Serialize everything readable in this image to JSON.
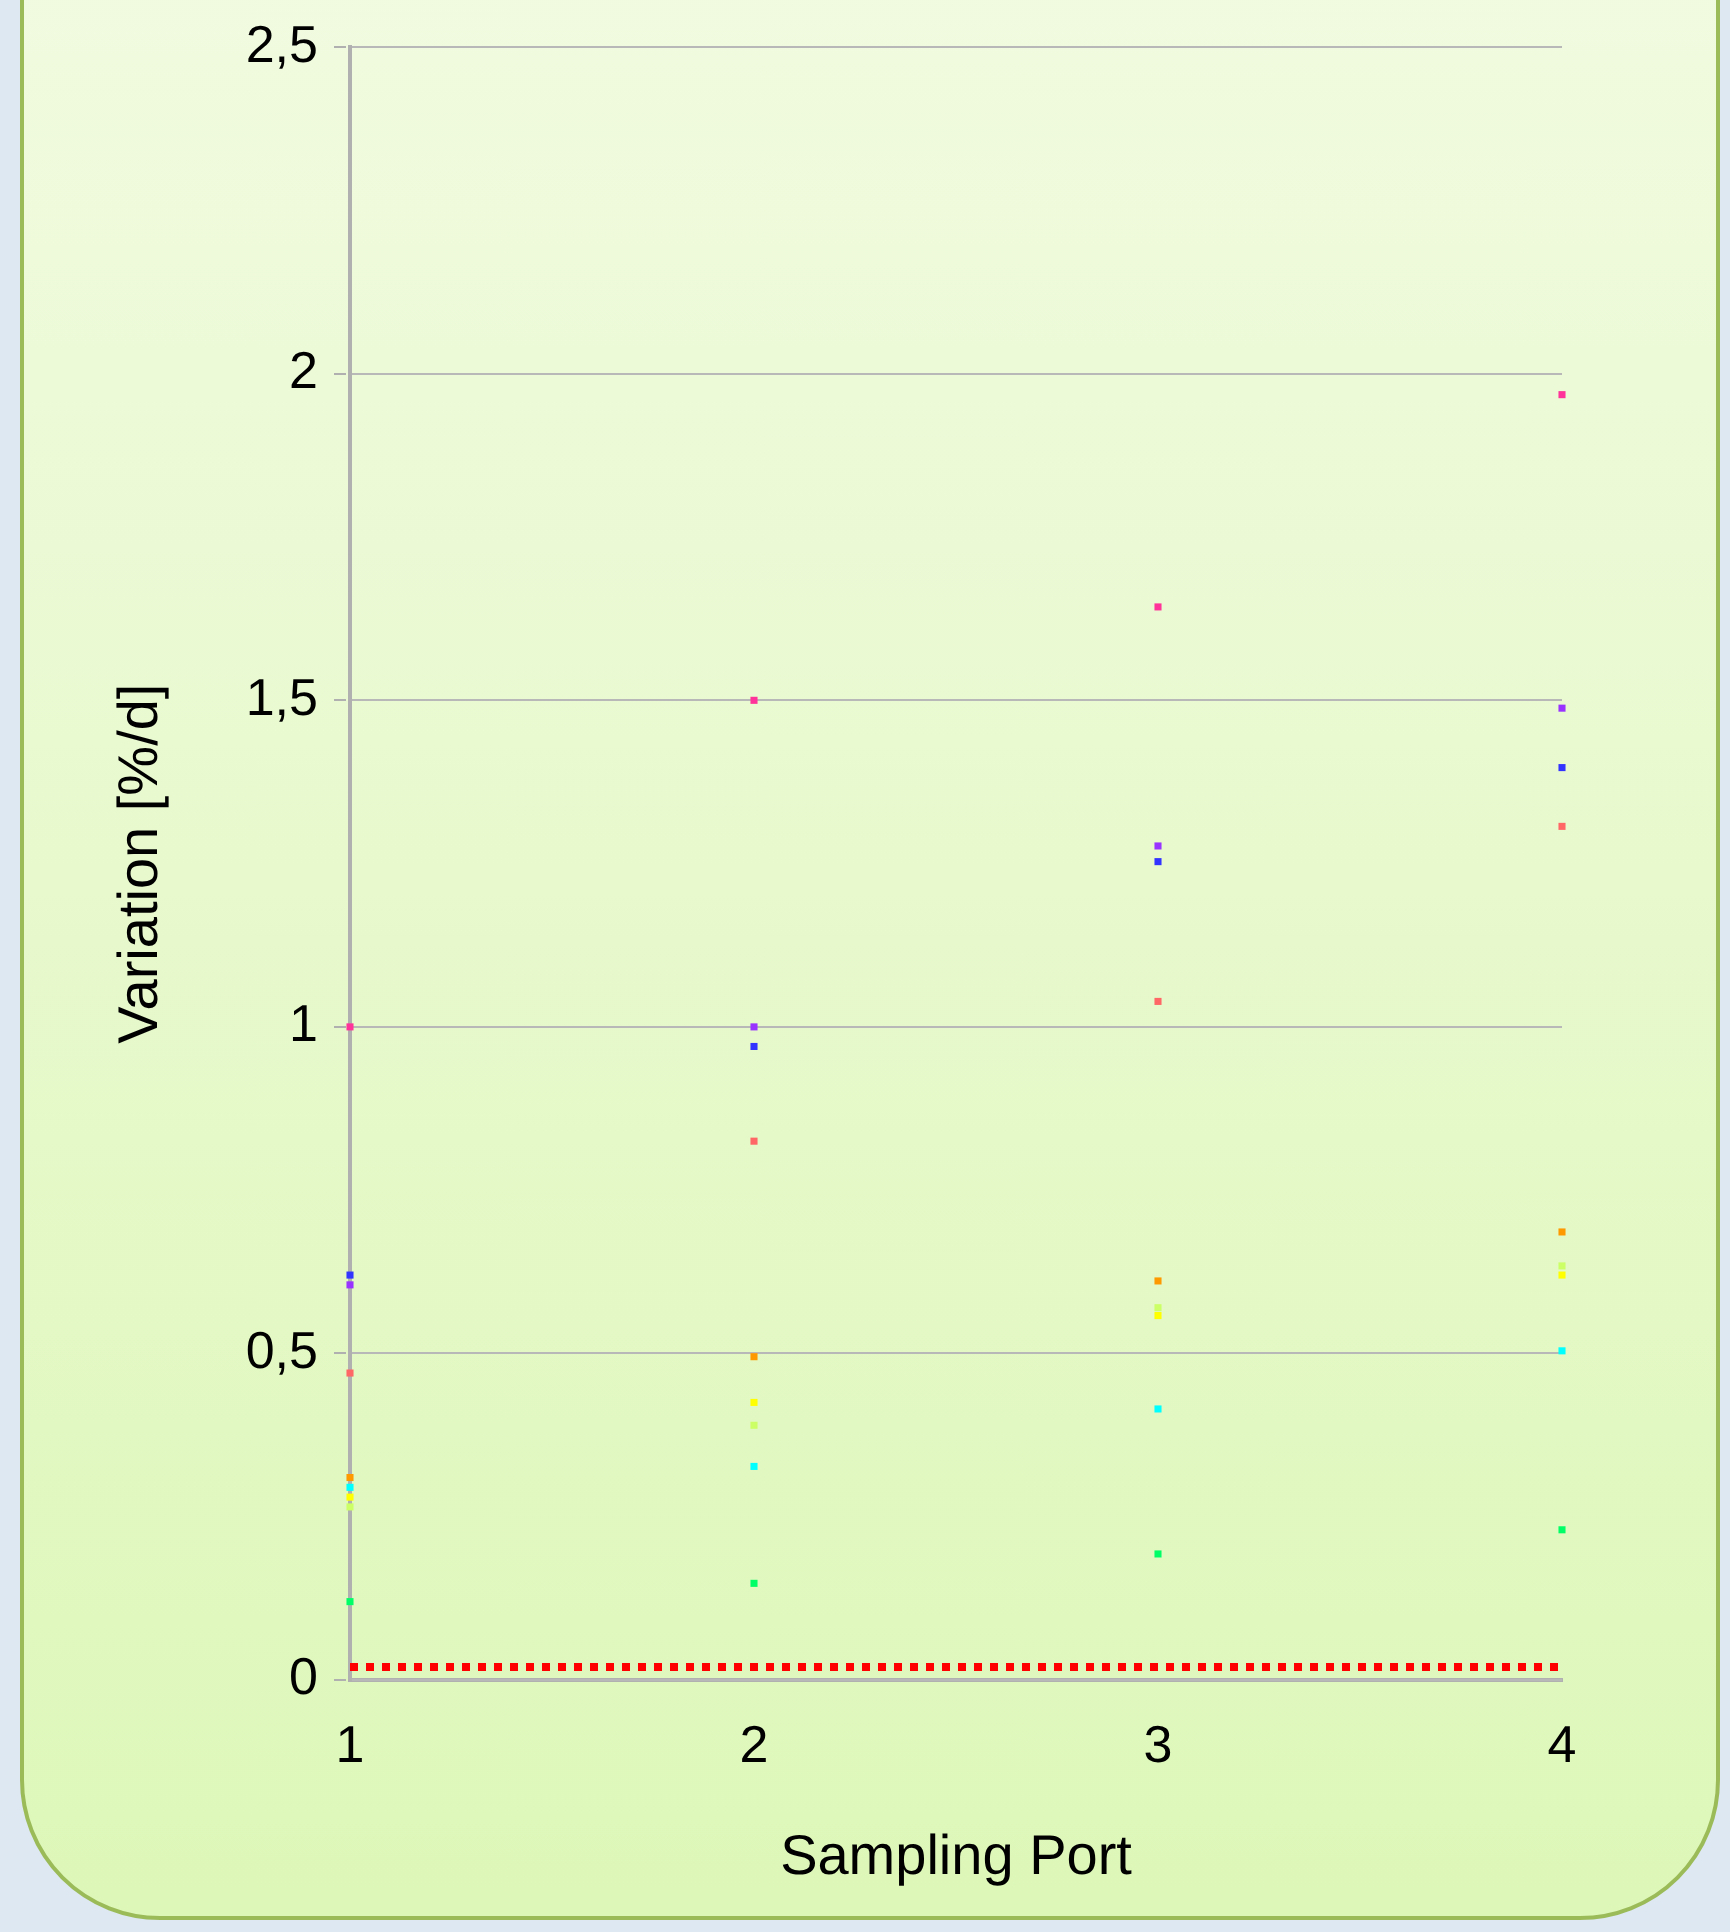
{
  "chart_data": {
    "type": "scatter",
    "xlabel": "Sampling Port",
    "ylabel": "Variation [%/d]",
    "x": [
      1,
      2,
      3,
      4
    ],
    "xlim": [
      1,
      4
    ],
    "xticks": [
      1,
      2,
      3,
      4
    ],
    "marker": "square",
    "series": [
      {
        "color": "#ff3399",
        "values": [
          1.0,
          1.5,
          1.643,
          1.968
        ]
      },
      {
        "color": "#9933ff",
        "values": [
          0.605,
          1.0,
          1.277,
          1.488
        ]
      },
      {
        "color": "#3333ff",
        "values": [
          0.62,
          0.97,
          1.253,
          1.397
        ]
      },
      {
        "color": "#ff6666",
        "values": [
          0.47,
          0.825,
          1.039,
          1.307
        ]
      },
      {
        "color": "#ff9900",
        "values": [
          0.31,
          0.495,
          0.611,
          0.686
        ]
      },
      {
        "color": "#ccff66",
        "values": [
          0.265,
          0.39,
          0.57,
          0.634
        ]
      },
      {
        "color": "#ffff00",
        "values": [
          0.28,
          0.425,
          0.558,
          0.62
        ]
      },
      {
        "color": "#00ffff",
        "values": [
          0.295,
          0.327,
          0.415,
          0.504
        ]
      },
      {
        "color": "#00ff66",
        "values": [
          0.12,
          0.148,
          0.193,
          0.23
        ]
      }
    ],
    "ylim": [
      0,
      2.5
    ],
    "yticks": [
      0,
      {
        "value": 0.5,
        "label": "0,5"
      },
      1,
      {
        "value": 1.5,
        "label": "1,5"
      },
      2,
      {
        "value": 2.5,
        "label": "2,5"
      }
    ],
    "ref_lines": [
      {
        "axis": "y",
        "value": 0.02,
        "color": "#ff0000",
        "line_style": "dotted"
      }
    ],
    "grid": "y",
    "legend": false
  }
}
